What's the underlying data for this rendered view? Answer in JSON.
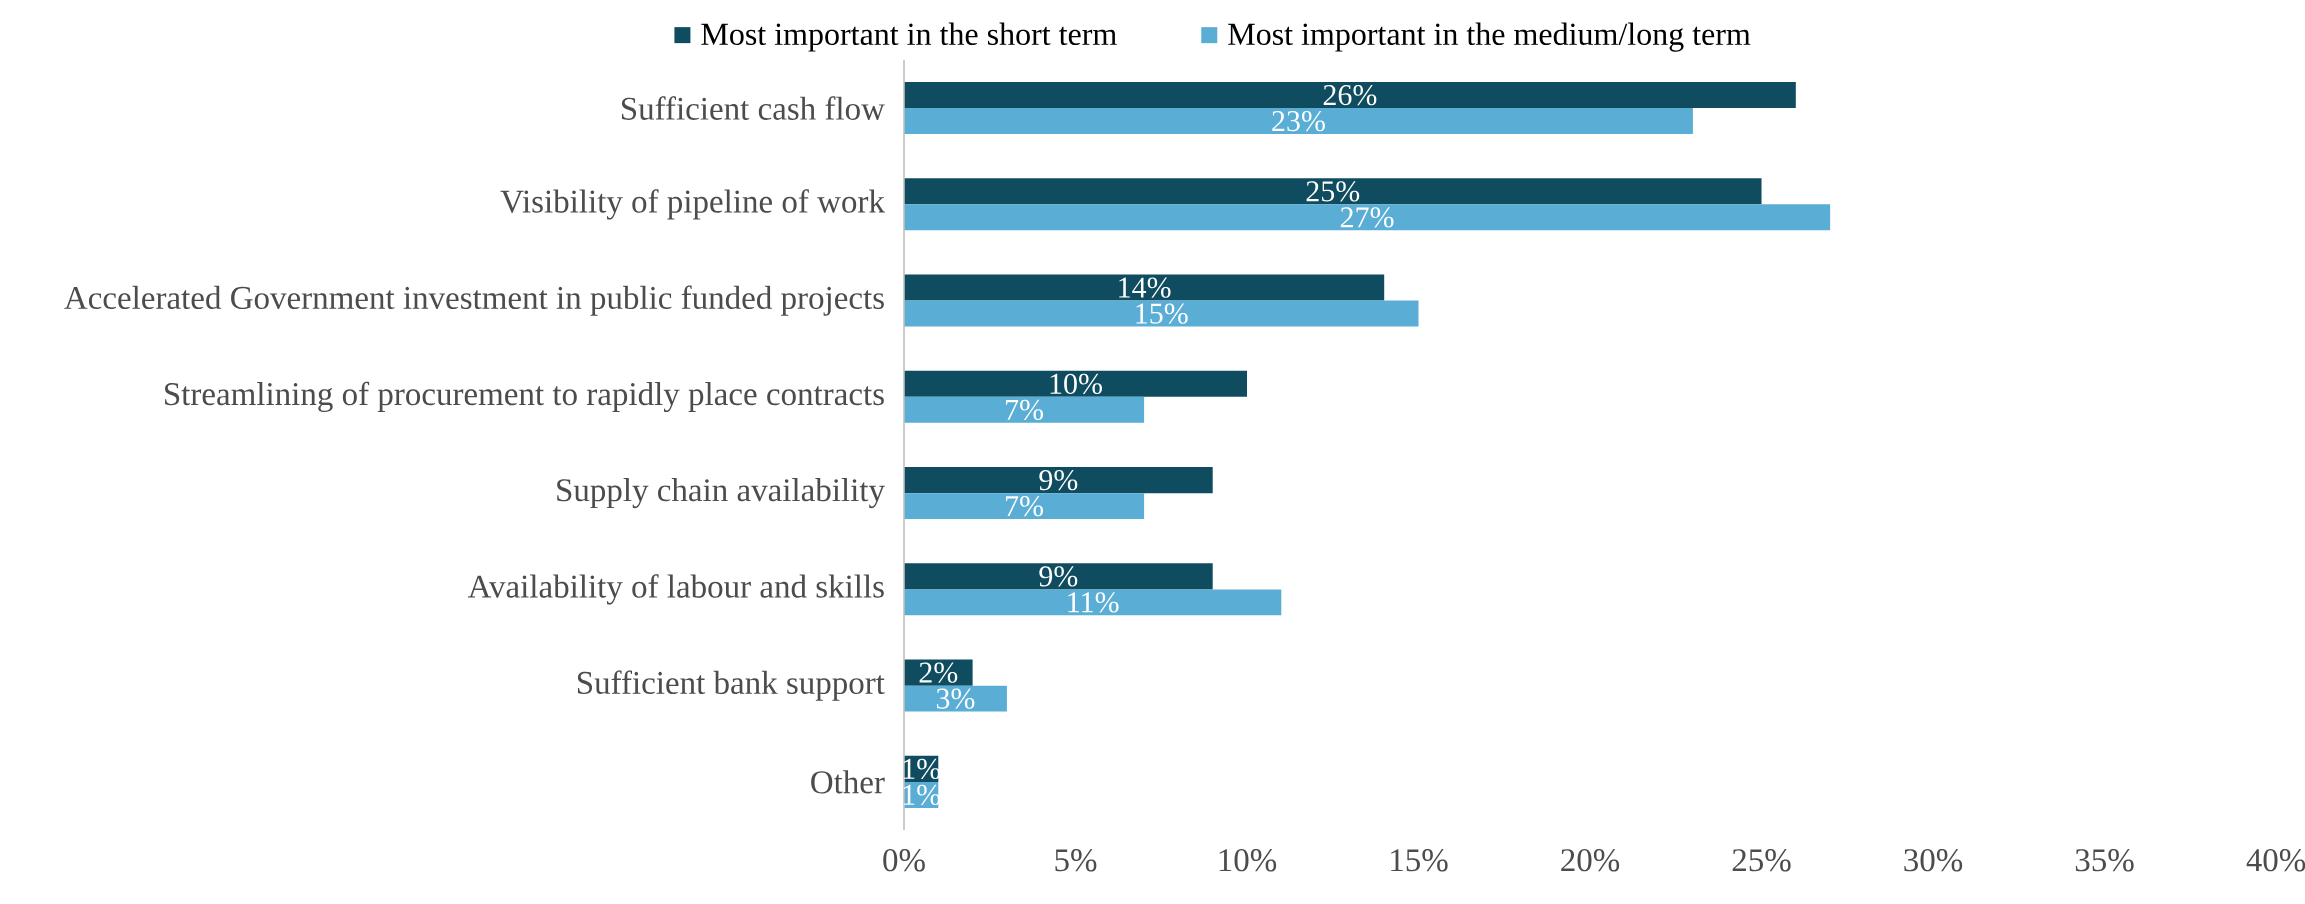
{
  "chart_data": {
    "type": "bar",
    "orientation": "horizontal",
    "legend": "top",
    "categories": [
      "Sufficient cash flow",
      "Visibility of pipeline of work",
      "Accelerated Government investment in public funded projects",
      "Streamlining of procurement to rapidly place contracts",
      "Supply chain availability",
      "Availability of labour and skills",
      "Sufficient bank support",
      "Other"
    ],
    "series": [
      {
        "name": "Most important in the short term",
        "color": "#0f4c5f",
        "values": [
          26,
          25,
          14,
          10,
          9,
          9,
          2,
          1
        ],
        "value_labels": [
          "26%",
          "25%",
          "14%",
          "10%",
          "9%",
          "9%",
          "2%",
          "1%"
        ]
      },
      {
        "name": "Most important in the medium/long term",
        "color": "#5aaed5",
        "values": [
          23,
          27,
          15,
          7,
          7,
          11,
          3,
          1
        ],
        "value_labels": [
          "23%",
          "27%",
          "15%",
          "7%",
          "7%",
          "11%",
          "3%",
          "1%"
        ]
      }
    ],
    "xlim": [
      0,
      40
    ],
    "xticks": [
      {
        "value": 0,
        "label": "0%"
      },
      {
        "value": 5,
        "label": "5%"
      },
      {
        "value": 10,
        "label": "10%"
      },
      {
        "value": 15,
        "label": "15%"
      },
      {
        "value": 20,
        "label": "20%"
      },
      {
        "value": 25,
        "label": "25%"
      },
      {
        "value": 30,
        "label": "30%"
      },
      {
        "value": 35,
        "label": "35%"
      },
      {
        "value": 40,
        "label": "40%"
      }
    ]
  }
}
